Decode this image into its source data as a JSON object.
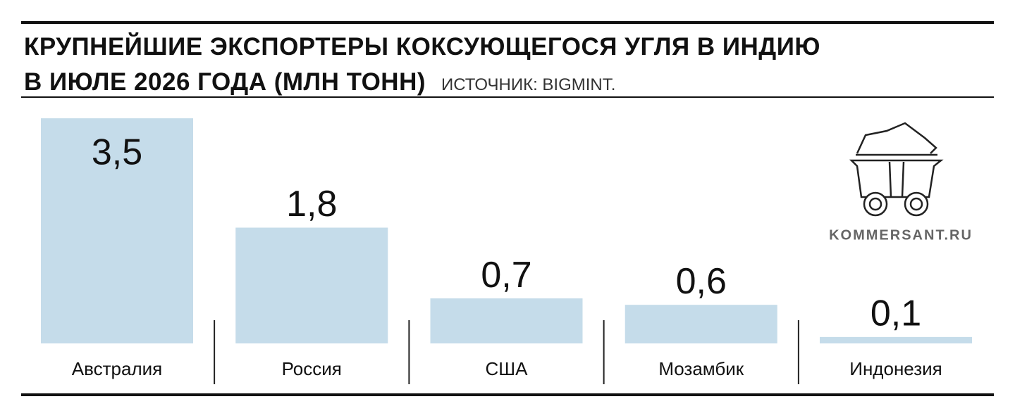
{
  "chart_data": {
    "type": "bar",
    "title": "КРУПНЕЙШИЕ ЭКСПОРТЕРЫ КОКСУЮЩЕГОСЯ УГЛЯ В ИНДИЮ\nВ ИЮЛЕ 2026 ГОДА (МЛН ТОНН)",
    "source": "ИСТОЧНИК: BIGMINT.",
    "watermark": "KOMMERSANT.RU",
    "categories": [
      "Австралия",
      "Россия",
      "США",
      "Мозамбик",
      "Индонезия"
    ],
    "values": [
      3.5,
      1.8,
      0.7,
      0.6,
      0.1
    ],
    "value_labels": [
      "3,5",
      "1,8",
      "0,7",
      "0,6",
      "0,1"
    ],
    "color": "#c5dcea"
  }
}
